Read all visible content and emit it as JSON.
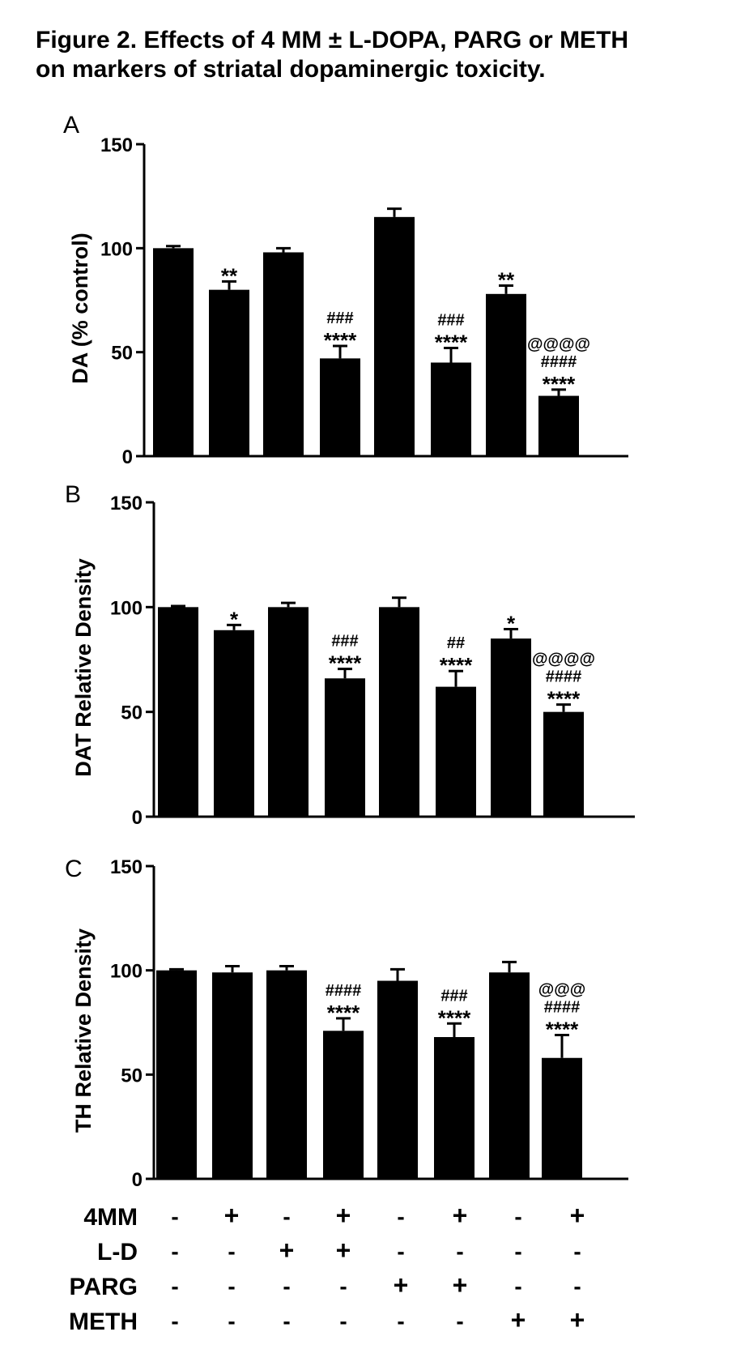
{
  "title": {
    "line1": "Figure 2. Effects of 4 MM ± L-DOPA, PARG or METH",
    "line2": "on markers of striatal dopaminergic toxicity."
  },
  "colors": {
    "bar": "#000000",
    "background": "#ffffff"
  },
  "chart_data": [
    {
      "type": "bar",
      "panel": "A",
      "ylabel": "DA (% control)",
      "ylim": [
        0,
        150
      ],
      "yticks": [
        0,
        50,
        100,
        150
      ],
      "values": [
        100,
        80,
        98,
        47,
        115,
        45,
        78,
        29
      ],
      "errors": [
        1,
        4,
        2,
        6,
        4,
        7,
        4,
        3
      ],
      "annotations": [
        [],
        [
          "**"
        ],
        [],
        [
          "###",
          "****"
        ],
        [],
        [
          "###",
          "****"
        ],
        [
          "**"
        ],
        [
          "@@@@",
          "####",
          "****"
        ]
      ]
    },
    {
      "type": "bar",
      "panel": "B",
      "ylabel": "DAT Relative Density",
      "ylim": [
        0,
        150
      ],
      "yticks": [
        0,
        50,
        100,
        150
      ],
      "values": [
        100,
        89,
        100,
        66,
        100,
        62,
        85,
        50
      ],
      "errors": [
        0.5,
        2.5,
        2,
        4.5,
        4.5,
        7.5,
        4.5,
        3.5
      ],
      "annotations": [
        [],
        [
          "*"
        ],
        [],
        [
          "###",
          "****"
        ],
        [],
        [
          "##",
          "****"
        ],
        [
          "*"
        ],
        [
          "@@@@",
          "####",
          "****"
        ]
      ]
    },
    {
      "type": "bar",
      "panel": "C",
      "ylabel": "TH Relative Density",
      "ylim": [
        0,
        150
      ],
      "yticks": [
        0,
        50,
        100,
        150
      ],
      "values": [
        100,
        99,
        100,
        71,
        95,
        68,
        99,
        58
      ],
      "errors": [
        0.5,
        3,
        2,
        6,
        5.5,
        6.5,
        5,
        11
      ],
      "annotations": [
        [],
        [],
        [],
        [
          "####",
          "****"
        ],
        [],
        [
          "###",
          "****"
        ],
        [],
        [
          "@@@",
          "####",
          "****"
        ]
      ]
    }
  ],
  "treatment_table": {
    "rows": [
      {
        "label": "4MM",
        "signs": [
          "-",
          "+",
          "-",
          "+",
          "-",
          "+",
          "-",
          "+"
        ]
      },
      {
        "label": "L-D",
        "signs": [
          "-",
          "-",
          "+",
          "+",
          "-",
          "-",
          "-",
          "-"
        ]
      },
      {
        "label": "PARG",
        "signs": [
          "-",
          "-",
          "-",
          "-",
          "+",
          "+",
          "-",
          "-"
        ]
      },
      {
        "label": "METH",
        "signs": [
          "-",
          "-",
          "-",
          "-",
          "-",
          "-",
          "+",
          "+"
        ]
      }
    ]
  }
}
